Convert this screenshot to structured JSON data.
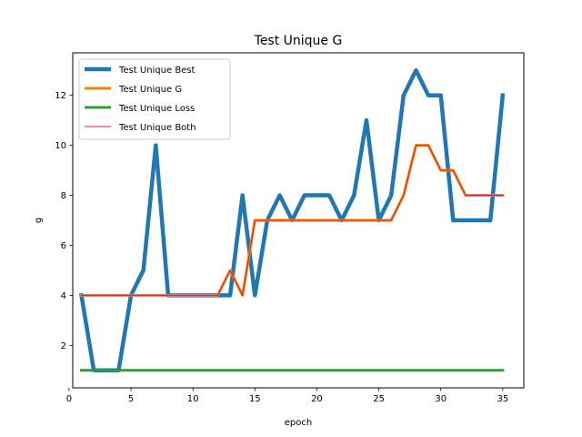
{
  "chart_data": {
    "type": "line",
    "title": "Test Unique G",
    "xlabel": "epoch",
    "ylabel": "g",
    "xlim": [
      0.3,
      36.7
    ],
    "ylim": [
      0.3,
      13.7
    ],
    "xticks": [
      0,
      5,
      10,
      15,
      20,
      25,
      30,
      35
    ],
    "yticks": [
      2,
      4,
      6,
      8,
      10,
      12
    ],
    "grid": false,
    "legend_position": "upper left",
    "x": [
      1,
      2,
      3,
      4,
      5,
      6,
      7,
      8,
      9,
      10,
      11,
      12,
      13,
      14,
      15,
      16,
      17,
      18,
      19,
      20,
      21,
      22,
      23,
      24,
      25,
      26,
      27,
      28,
      29,
      30,
      31,
      32,
      33,
      34,
      35
    ],
    "series": [
      {
        "name": "Test Unique Best",
        "color": "#1f77b4",
        "width": "thick",
        "values": [
          4,
          1,
          1,
          1,
          4,
          5,
          10,
          4,
          4,
          4,
          4,
          4,
          4,
          8,
          4,
          7,
          8,
          7,
          8,
          8,
          8,
          7,
          8,
          11,
          7,
          8,
          12,
          13,
          12,
          12,
          7,
          7,
          7,
          7,
          12
        ]
      },
      {
        "name": "Test Unique G",
        "color": "#ff7f0e",
        "width": "medium",
        "values": [
          4,
          4,
          4,
          4,
          4,
          4,
          4,
          4,
          4,
          4,
          4,
          4,
          5,
          4,
          7,
          7,
          7,
          7,
          7,
          7,
          7,
          7,
          7,
          7,
          7,
          7,
          8,
          10,
          10,
          9,
          9,
          8,
          8,
          8,
          8
        ]
      },
      {
        "name": "Test Unique Loss",
        "color": "#2ca02c",
        "width": "medium",
        "values": [
          1,
          1,
          1,
          1,
          1,
          1,
          1,
          1,
          1,
          1,
          1,
          1,
          1,
          1,
          1,
          1,
          1,
          1,
          1,
          1,
          1,
          1,
          1,
          1,
          1,
          1,
          1,
          1,
          1,
          1,
          1,
          1,
          1,
          1,
          1
        ]
      },
      {
        "name": "Test Unique Both",
        "color": "#d62728",
        "width": "thin",
        "values": [
          4,
          4,
          4,
          4,
          4,
          4,
          4,
          4,
          4,
          4,
          4,
          4,
          5,
          4,
          7,
          7,
          7,
          7,
          7,
          7,
          7,
          7,
          7,
          7,
          7,
          7,
          8,
          10,
          10,
          9,
          9,
          8,
          8,
          8,
          8
        ]
      }
    ]
  }
}
